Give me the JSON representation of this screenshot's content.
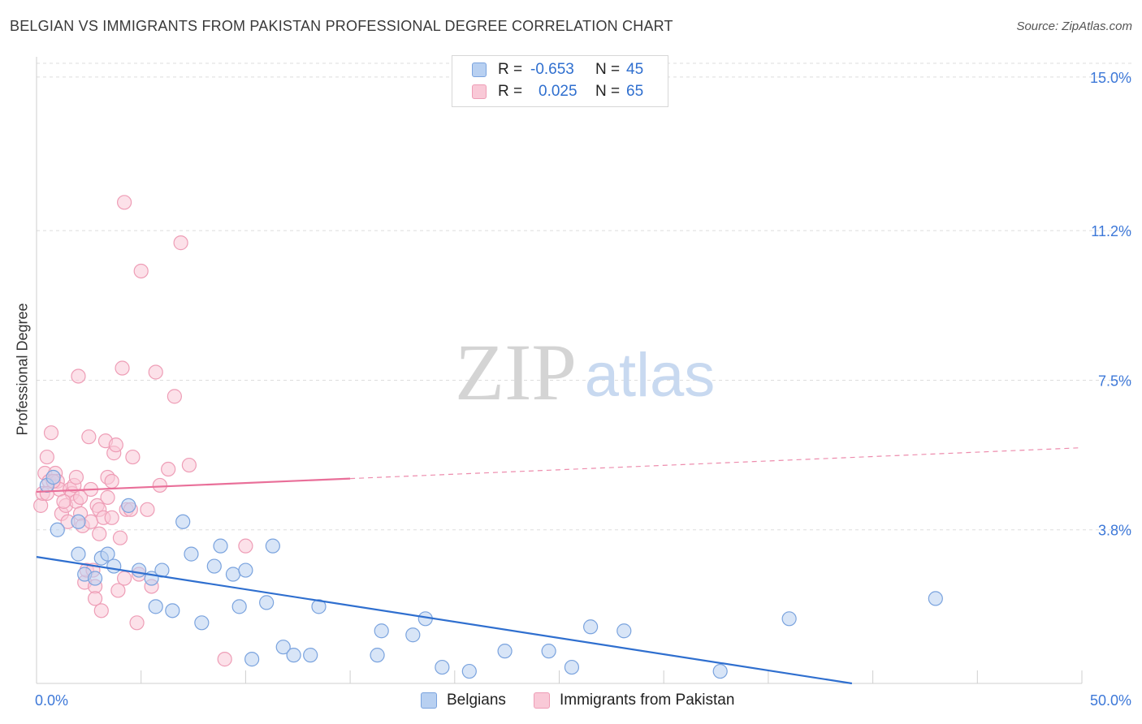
{
  "title": "BELGIAN VS IMMIGRANTS FROM PAKISTAN PROFESSIONAL DEGREE CORRELATION CHART",
  "source": "Source: ZipAtlas.com",
  "watermark": {
    "zip": "ZIP",
    "atlas": "atlas"
  },
  "legend": {
    "r_label": "R =",
    "n_label": "N =",
    "belgians": {
      "r": "-0.653",
      "n": "45"
    },
    "pakistan": {
      "r": "0.025",
      "n": "65"
    }
  },
  "bottom_legend": {
    "belgians": "Belgians",
    "pakistan": "Immigrants from Pakistan"
  },
  "colors": {
    "blue_fill": "#b8d0f1",
    "blue_stroke": "#7aa3de",
    "blue_line": "#2f6fcf",
    "pink_fill": "#f9c9d7",
    "pink_stroke": "#ee9db6",
    "pink_line": "#e96f99",
    "tick_text": "#3d78d8",
    "grid": "#dddddd"
  },
  "chart_data": {
    "type": "scatter",
    "title": "BELGIAN VS IMMIGRANTS FROM PAKISTAN PROFESSIONAL DEGREE CORRELATION CHART",
    "xlabel": "",
    "ylabel": "Professional Degree",
    "xlim": [
      0,
      50
    ],
    "ylim": [
      0,
      15.5
    ],
    "x_tick_labels": [
      {
        "value": 0,
        "label": "0.0%"
      },
      {
        "value": 50,
        "label": "50.0%"
      }
    ],
    "y_ticks": [
      {
        "value": 3.8,
        "label": "3.8%"
      },
      {
        "value": 7.5,
        "label": "7.5%"
      },
      {
        "value": 11.2,
        "label": "11.2%"
      },
      {
        "value": 15.0,
        "label": "15.0%"
      }
    ],
    "x_minor_ticks": [
      0,
      5,
      10,
      15,
      20,
      25,
      30,
      35,
      40,
      45,
      50
    ],
    "series": [
      {
        "name": "Belgians",
        "color": "blue",
        "points": [
          [
            1.0,
            3.8
          ],
          [
            2.0,
            4.0
          ],
          [
            2.0,
            3.2
          ],
          [
            2.3,
            2.7
          ],
          [
            2.8,
            2.6
          ],
          [
            3.1,
            3.1
          ],
          [
            3.4,
            3.2
          ],
          [
            3.7,
            2.9
          ],
          [
            4.4,
            4.4
          ],
          [
            4.9,
            2.8
          ],
          [
            5.5,
            2.6
          ],
          [
            6.0,
            2.8
          ],
          [
            5.7,
            1.9
          ],
          [
            6.5,
            1.8
          ],
          [
            7.0,
            4.0
          ],
          [
            7.4,
            3.2
          ],
          [
            7.9,
            1.5
          ],
          [
            8.5,
            2.9
          ],
          [
            8.8,
            3.4
          ],
          [
            9.4,
            2.7
          ],
          [
            9.7,
            1.9
          ],
          [
            10.0,
            2.8
          ],
          [
            10.3,
            0.6
          ],
          [
            11.0,
            2.0
          ],
          [
            11.3,
            3.4
          ],
          [
            11.8,
            0.9
          ],
          [
            12.3,
            0.7
          ],
          [
            13.1,
            0.7
          ],
          [
            13.5,
            1.9
          ],
          [
            16.3,
            0.7
          ],
          [
            16.5,
            1.3
          ],
          [
            18.0,
            1.2
          ],
          [
            18.6,
            1.6
          ],
          [
            19.4,
            0.4
          ],
          [
            20.7,
            0.3
          ],
          [
            22.4,
            0.8
          ],
          [
            24.5,
            0.8
          ],
          [
            25.6,
            0.4
          ],
          [
            26.5,
            1.4
          ],
          [
            28.1,
            1.3
          ],
          [
            32.7,
            0.3
          ],
          [
            36.0,
            1.6
          ],
          [
            43.0,
            2.1
          ],
          [
            0.5,
            4.9
          ],
          [
            0.8,
            5.1
          ]
        ],
        "trend": {
          "x0": 0,
          "y0": 3.13,
          "x1": 39,
          "y1": 0.0
        }
      },
      {
        "name": "Immigrants from Pakistan",
        "color": "pink",
        "points": [
          [
            0.2,
            4.4
          ],
          [
            0.3,
            4.7
          ],
          [
            0.4,
            5.2
          ],
          [
            0.5,
            5.6
          ],
          [
            0.6,
            5.0
          ],
          [
            0.7,
            6.2
          ],
          [
            0.9,
            5.2
          ],
          [
            1.0,
            5.0
          ],
          [
            1.1,
            4.8
          ],
          [
            1.2,
            4.2
          ],
          [
            1.4,
            4.4
          ],
          [
            1.6,
            4.8
          ],
          [
            1.7,
            4.7
          ],
          [
            1.8,
            4.9
          ],
          [
            1.9,
            4.5
          ],
          [
            2.0,
            7.6
          ],
          [
            2.1,
            4.2
          ],
          [
            2.2,
            3.9
          ],
          [
            2.3,
            2.5
          ],
          [
            2.4,
            2.8
          ],
          [
            2.5,
            6.1
          ],
          [
            2.6,
            4.0
          ],
          [
            2.7,
            2.8
          ],
          [
            2.8,
            2.4
          ],
          [
            2.8,
            2.1
          ],
          [
            2.9,
            4.4
          ],
          [
            3.0,
            4.3
          ],
          [
            3.1,
            1.8
          ],
          [
            3.2,
            4.1
          ],
          [
            3.3,
            6.0
          ],
          [
            3.4,
            5.1
          ],
          [
            3.4,
            4.6
          ],
          [
            3.6,
            5.0
          ],
          [
            3.6,
            4.1
          ],
          [
            3.7,
            5.7
          ],
          [
            3.8,
            5.9
          ],
          [
            3.9,
            2.3
          ],
          [
            4.0,
            3.6
          ],
          [
            4.1,
            7.8
          ],
          [
            4.2,
            11.9
          ],
          [
            4.3,
            4.3
          ],
          [
            4.5,
            4.3
          ],
          [
            4.6,
            5.6
          ],
          [
            4.8,
            1.5
          ],
          [
            4.9,
            2.7
          ],
          [
            5.0,
            10.2
          ],
          [
            5.3,
            4.3
          ],
          [
            5.5,
            2.4
          ],
          [
            5.7,
            7.7
          ],
          [
            5.9,
            4.9
          ],
          [
            6.3,
            5.3
          ],
          [
            6.6,
            7.1
          ],
          [
            6.9,
            10.9
          ],
          [
            7.3,
            5.4
          ],
          [
            9.0,
            0.6
          ],
          [
            10.0,
            3.4
          ],
          [
            1.5,
            4.0
          ],
          [
            2.1,
            4.6
          ],
          [
            0.8,
            5.0
          ],
          [
            1.3,
            4.5
          ],
          [
            0.5,
            4.7
          ],
          [
            1.9,
            5.1
          ],
          [
            3.0,
            3.7
          ],
          [
            4.2,
            2.6
          ],
          [
            2.6,
            4.8
          ]
        ],
        "trend": {
          "x0": 0,
          "y0": 4.74,
          "x1": 50,
          "y1": 5.83,
          "solid_until": 15
        }
      }
    ],
    "legend_position": "top-center",
    "grid": true
  }
}
